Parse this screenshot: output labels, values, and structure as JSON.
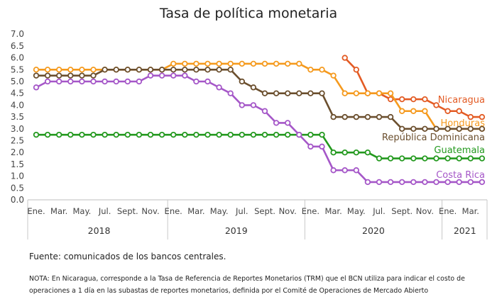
{
  "chart_data": {
    "type": "line",
    "title": "Tasa de política monetaria",
    "ylim": [
      0,
      7
    ],
    "yticks": [
      "0.0",
      "0.5",
      "1.0",
      "1.5",
      "2.0",
      "2.5",
      "3.0",
      "3.5",
      "4.0",
      "4.5",
      "5.0",
      "5.5",
      "6.0",
      "6.5",
      "7.0"
    ],
    "month_labels": [
      "Ene.",
      "Mar.",
      "May.",
      "Jul.",
      "Sept.",
      "Nov.",
      "Ene.",
      "Mar.",
      "May.",
      "Jul.",
      "Sept.",
      "Nov.",
      "Ene.",
      "Mar.",
      "May.",
      "Jul.",
      "Sept.",
      "Nov.",
      "Ene.",
      "Mar."
    ],
    "month_label_index": [
      0,
      2,
      4,
      6,
      8,
      10,
      12,
      14,
      16,
      18,
      20,
      22,
      24,
      26,
      28,
      30,
      32,
      34,
      36,
      38
    ],
    "years": [
      {
        "label": "2018",
        "start": 0,
        "end": 11
      },
      {
        "label": "2019",
        "start": 12,
        "end": 23
      },
      {
        "label": "2020",
        "start": 24,
        "end": 35
      },
      {
        "label": "2021",
        "start": 36,
        "end": 39
      }
    ],
    "x_count": 40,
    "grid": false,
    "series": [
      {
        "name": "Nicaragua",
        "color": "#e35b24",
        "start": 27,
        "values": [
          6.0,
          5.5,
          4.5,
          4.5,
          4.25,
          4.25,
          4.25,
          4.25,
          4.0,
          3.75,
          3.75,
          3.5,
          3.5
        ]
      },
      {
        "name": "Honduras",
        "color": "#f59a1e",
        "start": 0,
        "values": [
          5.5,
          5.5,
          5.5,
          5.5,
          5.5,
          5.5,
          5.5,
          5.5,
          5.5,
          5.5,
          5.5,
          5.5,
          5.75,
          5.75,
          5.75,
          5.75,
          5.75,
          5.75,
          5.75,
          5.75,
          5.75,
          5.75,
          5.75,
          5.75,
          5.5,
          5.5,
          5.25,
          4.5,
          4.5,
          4.5,
          4.5,
          4.5,
          3.75,
          3.75,
          3.75,
          3.0,
          3.0,
          3.0,
          3.0,
          3.0
        ]
      },
      {
        "name": "República Dominicana",
        "color": "#6b4f2e",
        "start": 0,
        "values": [
          5.25,
          5.25,
          5.25,
          5.25,
          5.25,
          5.25,
          5.5,
          5.5,
          5.5,
          5.5,
          5.5,
          5.5,
          5.5,
          5.5,
          5.5,
          5.5,
          5.5,
          5.5,
          5.0,
          4.75,
          4.5,
          4.5,
          4.5,
          4.5,
          4.5,
          4.5,
          3.5,
          3.5,
          3.5,
          3.5,
          3.5,
          3.5,
          3.0,
          3.0,
          3.0,
          3.0,
          3.0,
          3.0,
          3.0,
          3.0
        ]
      },
      {
        "name": "Guatemala",
        "color": "#23991e",
        "start": 0,
        "values": [
          2.75,
          2.75,
          2.75,
          2.75,
          2.75,
          2.75,
          2.75,
          2.75,
          2.75,
          2.75,
          2.75,
          2.75,
          2.75,
          2.75,
          2.75,
          2.75,
          2.75,
          2.75,
          2.75,
          2.75,
          2.75,
          2.75,
          2.75,
          2.75,
          2.75,
          2.75,
          2.0,
          2.0,
          2.0,
          2.0,
          1.75,
          1.75,
          1.75,
          1.75,
          1.75,
          1.75,
          1.75,
          1.75,
          1.75,
          1.75
        ]
      },
      {
        "name": "Costa Rica",
        "color": "#a557c8",
        "start": 0,
        "values": [
          4.75,
          5.0,
          5.0,
          5.0,
          5.0,
          5.0,
          5.0,
          5.0,
          5.0,
          5.0,
          5.25,
          5.25,
          5.25,
          5.25,
          5.0,
          5.0,
          4.75,
          4.5,
          4.0,
          4.0,
          3.75,
          3.25,
          3.25,
          2.75,
          2.25,
          2.25,
          1.25,
          1.25,
          1.25,
          0.75,
          0.75,
          0.75,
          0.75,
          0.75,
          0.75,
          0.75,
          0.75,
          0.75,
          0.75,
          0.75
        ]
      }
    ]
  },
  "footer": {
    "source": "Fuente: comunicados de los bancos centrales.",
    "note": "NOTA: En Nicaragua, corresponde a la Tasa de Referencia de Reportes Monetarios (TRM) que el BCN utiliza para indicar el costo de operaciones a 1 día en las subastas de reportes monetarios, definida por el Comité de Operaciones de Mercado Abierto"
  }
}
